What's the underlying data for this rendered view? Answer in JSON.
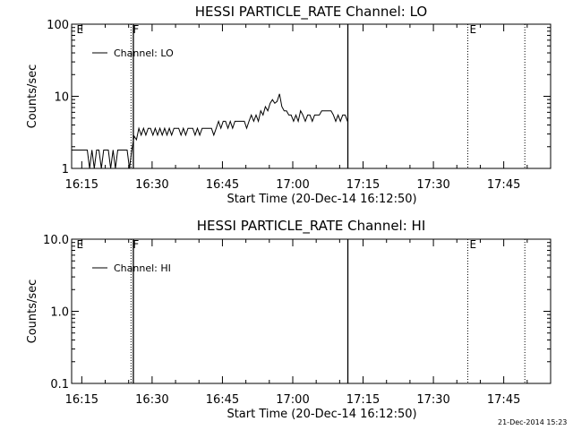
{
  "chart_data": [
    {
      "type": "line",
      "title": "HESSI PARTICLE_RATE Channel: LO",
      "xlabel": "Start Time (20-Dec-14 16:12:50)",
      "ylabel": "Counts/sec",
      "yscale": "log",
      "ylim": [
        1,
        100
      ],
      "xlim": [
        "16:12:50",
        "17:55:00"
      ],
      "x_ticks": [
        "16:15",
        "16:30",
        "16:45",
        "17:00",
        "17:15",
        "17:30",
        "17:45"
      ],
      "y_ticks": [
        "1",
        "10",
        "100"
      ],
      "legend": {
        "placement": "top-left",
        "entries": [
          "Channel: LO"
        ]
      },
      "annotations": [
        {
          "label": "E",
          "time": "16:13:30",
          "style": "none"
        },
        {
          "label": "F",
          "time": "16:25:30",
          "style": "dotted"
        },
        {
          "label": "",
          "time": "16:26:00",
          "style": "solid"
        },
        {
          "label": "",
          "time": "17:11:45",
          "style": "solid"
        },
        {
          "label": "E",
          "time": "17:37:20",
          "style": "dotted"
        },
        {
          "label": "",
          "time": "17:49:30",
          "style": "dotted"
        }
      ],
      "series": [
        {
          "name": "Channel: LO",
          "times": [
            "16:12:50",
            "16:14:30",
            "16:16:10",
            "16:16:40",
            "16:17:10",
            "16:17:40",
            "16:18:10",
            "16:18:40",
            "16:19:10",
            "16:19:40",
            "16:20:10",
            "16:20:40",
            "16:21:10",
            "16:21:40",
            "16:22:10",
            "16:22:40",
            "16:23:10",
            "16:23:40",
            "16:24:10",
            "16:24:40",
            "16:25:10",
            "16:25:40",
            "16:26:10",
            "16:26:40",
            "16:27:10",
            "16:27:40",
            "16:28:10",
            "16:28:40",
            "16:29:10",
            "16:29:40",
            "16:30:10",
            "16:30:40",
            "16:31:10",
            "16:31:40",
            "16:32:10",
            "16:32:40",
            "16:33:10",
            "16:33:40",
            "16:34:10",
            "16:34:40",
            "16:35:10",
            "16:35:40",
            "16:36:10",
            "16:36:40",
            "16:37:10",
            "16:37:40",
            "16:38:10",
            "16:38:40",
            "16:39:10",
            "16:39:40",
            "16:40:10",
            "16:40:40",
            "16:41:10",
            "16:41:40",
            "16:42:10",
            "16:42:40",
            "16:43:10",
            "16:43:40",
            "16:44:10",
            "16:44:40",
            "16:45:10",
            "16:45:40",
            "16:46:10",
            "16:46:40",
            "16:47:10",
            "16:47:40",
            "16:48:10",
            "16:48:40",
            "16:49:10",
            "16:49:40",
            "16:50:10",
            "16:50:40",
            "16:51:10",
            "16:51:40",
            "16:52:10",
            "16:52:40",
            "16:53:10",
            "16:53:40",
            "16:54:10",
            "16:54:40",
            "16:55:10",
            "16:55:40",
            "16:56:10",
            "16:56:40",
            "16:57:10",
            "16:57:40",
            "16:58:10",
            "16:58:40",
            "16:59:10",
            "16:59:40",
            "17:00:10",
            "17:00:40",
            "17:01:10",
            "17:01:40",
            "17:02:10",
            "17:02:40",
            "17:03:10",
            "17:03:40",
            "17:04:10",
            "17:04:40",
            "17:05:10",
            "17:05:40",
            "17:06:10",
            "17:06:40",
            "17:07:10",
            "17:07:40",
            "17:08:10",
            "17:08:40",
            "17:09:10",
            "17:09:40",
            "17:10:10",
            "17:10:40",
            "17:11:10",
            "17:11:40"
          ],
          "values": [
            1.8,
            1.8,
            1.8,
            1.0,
            1.8,
            1.0,
            1.8,
            1.8,
            1.0,
            1.8,
            1.8,
            1.8,
            1.0,
            1.8,
            1.0,
            1.8,
            1.8,
            1.8,
            1.8,
            1.8,
            1.0,
            1.8,
            2.8,
            2.5,
            3.6,
            2.9,
            3.6,
            2.9,
            3.6,
            3.6,
            2.9,
            3.6,
            2.9,
            3.6,
            2.9,
            3.6,
            2.9,
            3.6,
            2.9,
            3.6,
            3.6,
            3.6,
            2.9,
            3.6,
            2.9,
            3.6,
            3.6,
            3.6,
            2.9,
            3.6,
            2.9,
            3.6,
            3.6,
            3.6,
            3.6,
            3.6,
            2.9,
            3.6,
            4.5,
            3.6,
            4.5,
            4.5,
            3.6,
            4.5,
            3.6,
            4.5,
            4.5,
            4.5,
            4.5,
            4.5,
            3.6,
            4.5,
            5.5,
            4.5,
            5.5,
            4.5,
            6.3,
            5.5,
            7.2,
            6.3,
            8.0,
            9.0,
            8.0,
            8.5,
            10.8,
            7.2,
            6.3,
            6.3,
            5.5,
            5.5,
            4.5,
            5.5,
            4.5,
            6.3,
            5.5,
            4.5,
            5.5,
            5.5,
            4.5,
            5.5,
            5.5,
            5.5,
            6.3,
            6.3,
            6.3,
            6.3,
            6.3,
            5.5,
            4.5,
            5.5,
            4.5,
            5.5,
            5.5,
            4.5
          ]
        }
      ]
    },
    {
      "type": "line",
      "title": "HESSI PARTICLE_RATE Channel: HI",
      "xlabel": "Start Time (20-Dec-14 16:12:50)",
      "ylabel": "Counts/sec",
      "yscale": "log",
      "ylim": [
        0.1,
        10
      ],
      "xlim": [
        "16:12:50",
        "17:55:00"
      ],
      "x_ticks": [
        "16:15",
        "16:30",
        "16:45",
        "17:00",
        "17:15",
        "17:30",
        "17:45"
      ],
      "y_ticks": [
        "0.1",
        "1.0",
        "10.0"
      ],
      "legend": {
        "placement": "top-left",
        "entries": [
          "Channel: HI"
        ]
      },
      "annotations": [
        {
          "label": "E",
          "time": "16:13:30",
          "style": "none"
        },
        {
          "label": "F",
          "time": "16:25:30",
          "style": "dotted"
        },
        {
          "label": "",
          "time": "16:26:00",
          "style": "solid"
        },
        {
          "label": "",
          "time": "17:11:45",
          "style": "solid"
        },
        {
          "label": "E",
          "time": "17:37:20",
          "style": "dotted"
        },
        {
          "label": "",
          "time": "17:49:30",
          "style": "dotted"
        }
      ],
      "series": [
        {
          "name": "Channel: HI",
          "times": [],
          "values": []
        }
      ]
    }
  ],
  "footer": {
    "timestamp": "21-Dec-2014 15:23"
  }
}
